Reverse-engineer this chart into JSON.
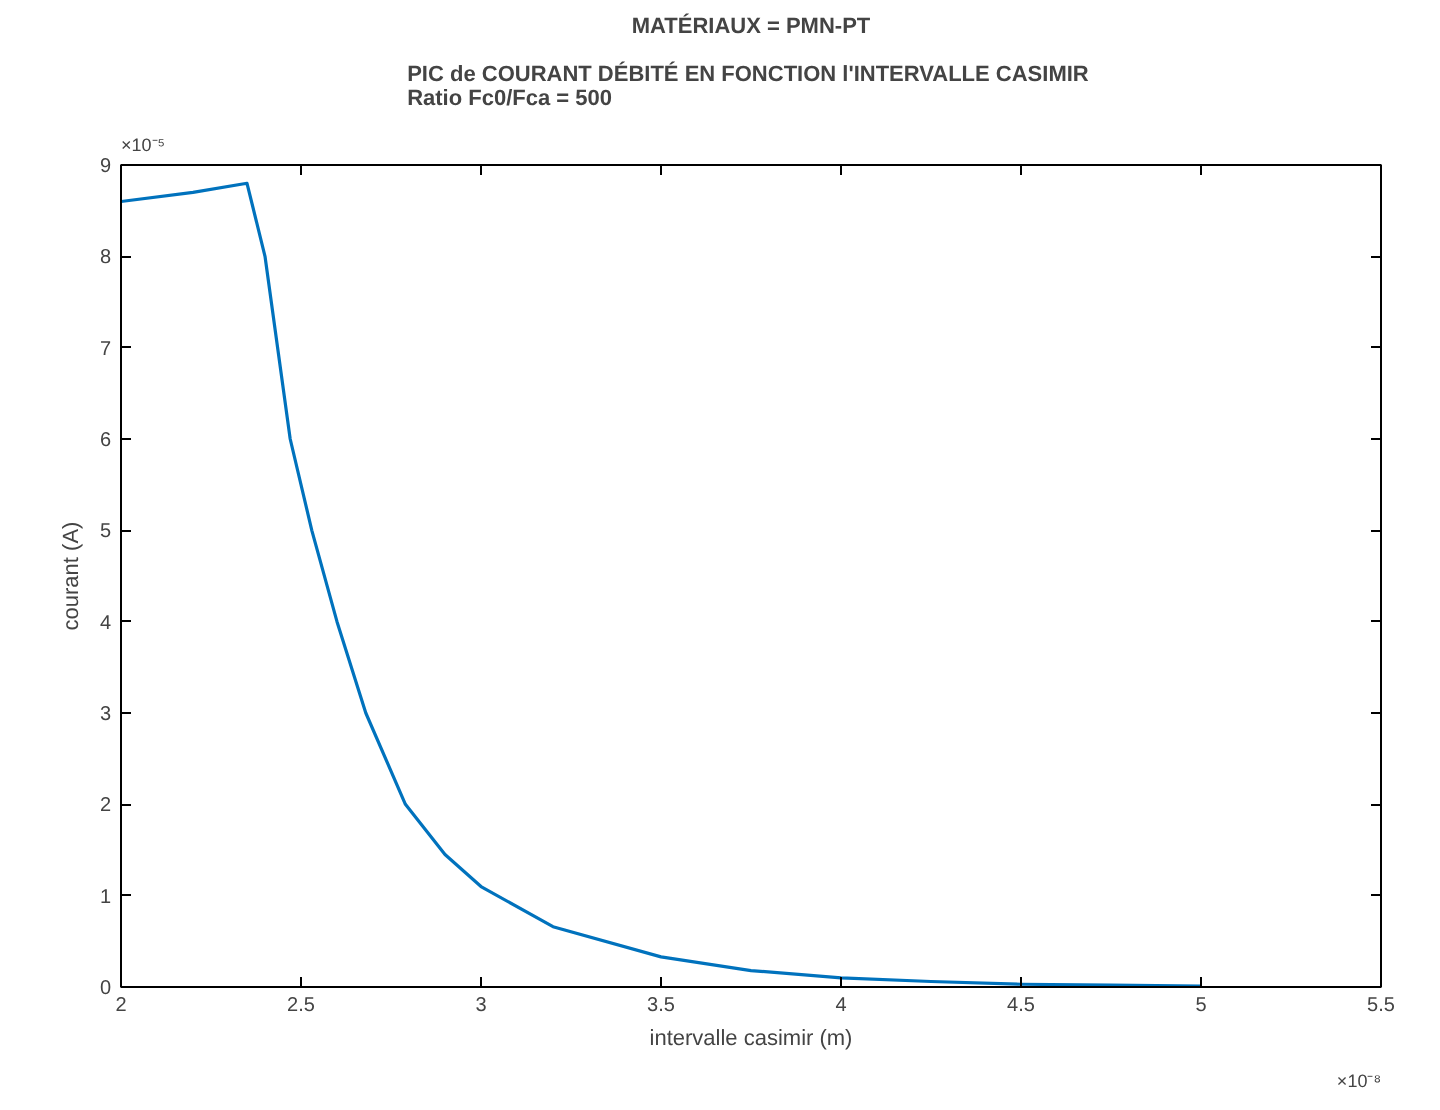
{
  "chart_data": {
    "type": "line",
    "title": "MATÉRIAUX = PMN-PT",
    "subtitle": "PIC de COURANT DÉBITÉ EN FONCTION  l'INTERVALLE CASIMIR\nRatio Fc0/Fca = 500",
    "xlabel": "intervalle casimir (m)",
    "ylabel": "courant (A)",
    "x": [
      2,
      2.2,
      2.35,
      2.4,
      2.47,
      2.53,
      2.6,
      2.68,
      2.79,
      2.9,
      3.0,
      3.2,
      3.5,
      3.75,
      4.0,
      4.25,
      4.5,
      4.75,
      5.0
    ],
    "series": [
      {
        "color": "#0072bd",
        "values": [
          8.6,
          8.7,
          8.8,
          8.0,
          6.0,
          5.0,
          4.0,
          3.0,
          2.0,
          1.45,
          1.1,
          0.66,
          0.33,
          0.18,
          0.1,
          0.06,
          0.03,
          0.02,
          0.01
        ]
      }
    ],
    "xlim": [
      2,
      5.5
    ],
    "ylim": [
      0,
      9
    ],
    "xticks": [
      2,
      2.5,
      3,
      3.5,
      4,
      4.5,
      5,
      5.5
    ],
    "yticks": [
      0,
      1,
      2,
      3,
      4,
      5,
      6,
      7,
      8,
      9
    ],
    "annotations": [
      "×10⁻⁵",
      "×10⁻⁸"
    ],
    "grid": false,
    "line_style": "solid"
  }
}
